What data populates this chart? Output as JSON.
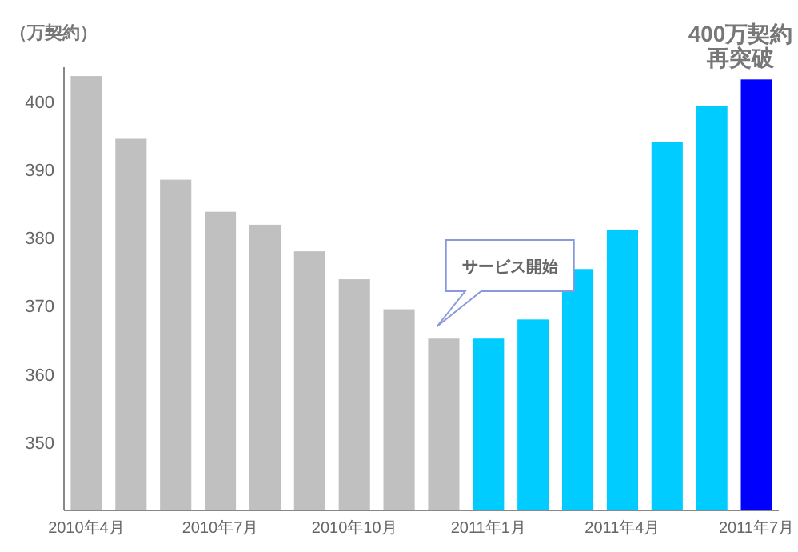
{
  "chart_data": {
    "type": "bar",
    "ylabel": "（万契約）",
    "categories": [
      "2010年4月",
      null,
      null,
      "2010年7月",
      null,
      null,
      "2010年10月",
      null,
      null,
      "2011年1月",
      null,
      null,
      "2011年4月",
      null,
      null,
      "2011年7月"
    ],
    "values": [
      403.7,
      394.5,
      388.5,
      383.8,
      381.9,
      378.0,
      373.9,
      369.5,
      365.2,
      365.2,
      368.0,
      375.4,
      381.1,
      394.0,
      399.3,
      403.2
    ],
    "colors": [
      "#c0c0c0",
      "#c0c0c0",
      "#c0c0c0",
      "#c0c0c0",
      "#c0c0c0",
      "#c0c0c0",
      "#c0c0c0",
      "#c0c0c0",
      "#c0c0c0",
      "#00ccff",
      "#00ccff",
      "#00ccff",
      "#00ccff",
      "#00ccff",
      "#00ccff",
      "#0000ff"
    ],
    "ylim": [
      340,
      405
    ],
    "yticks": [
      350,
      360,
      370,
      380,
      390,
      400
    ],
    "grid": false,
    "annotations": [
      {
        "text": "400万契約再突破",
        "x": "2011年7月",
        "y": 403.2
      },
      "サービス開始"
    ]
  }
}
